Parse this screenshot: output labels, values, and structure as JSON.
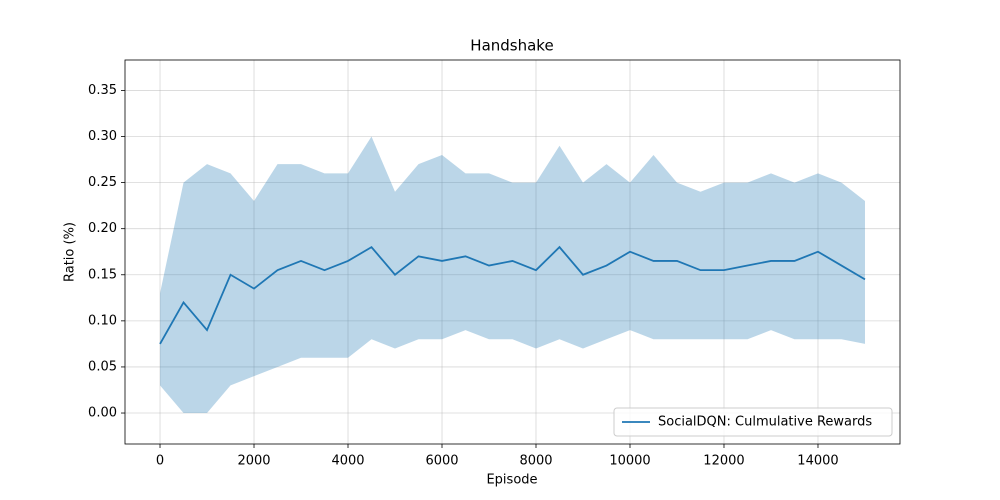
{
  "chart_data": {
    "type": "line",
    "title": "Handshake",
    "x_label": "Episode",
    "y_label": "Ratio (%)",
    "x": [
      0,
      500,
      1000,
      1500,
      2000,
      2500,
      3000,
      3500,
      4000,
      4500,
      5000,
      5500,
      6000,
      6500,
      7000,
      7500,
      8000,
      8500,
      9000,
      9500,
      10000,
      10500,
      11000,
      11500,
      12000,
      12500,
      13000,
      13500,
      14000,
      14500,
      15000
    ],
    "series": [
      {
        "name": "SocialDQN: Culmulative Rewards",
        "color": "#1f77b4",
        "band_color": "#1f77b4",
        "values": [
          0.075,
          0.12,
          0.09,
          0.15,
          0.135,
          0.155,
          0.165,
          0.155,
          0.165,
          0.18,
          0.15,
          0.17,
          0.165,
          0.17,
          0.16,
          0.165,
          0.155,
          0.18,
          0.15,
          0.16,
          0.175,
          0.165,
          0.165,
          0.155,
          0.155,
          0.16,
          0.165,
          0.165,
          0.175,
          0.16,
          0.145
        ],
        "lower": [
          0.03,
          0.0,
          0.0,
          0.03,
          0.04,
          0.05,
          0.06,
          0.06,
          0.06,
          0.08,
          0.07,
          0.08,
          0.08,
          0.09,
          0.08,
          0.08,
          0.07,
          0.08,
          0.07,
          0.08,
          0.09,
          0.08,
          0.08,
          0.08,
          0.08,
          0.08,
          0.09,
          0.08,
          0.08,
          0.08,
          0.075
        ],
        "upper": [
          0.13,
          0.25,
          0.27,
          0.26,
          0.23,
          0.27,
          0.27,
          0.26,
          0.26,
          0.3,
          0.24,
          0.27,
          0.28,
          0.26,
          0.26,
          0.25,
          0.25,
          0.29,
          0.25,
          0.27,
          0.25,
          0.28,
          0.25,
          0.24,
          0.25,
          0.25,
          0.26,
          0.25,
          0.26,
          0.25,
          0.23
        ]
      }
    ],
    "xlim": [
      -745,
      15745
    ],
    "xticks": [
      0,
      2000,
      4000,
      6000,
      8000,
      10000,
      12000,
      14000
    ],
    "ylim": [
      -0.0336,
      0.383
    ],
    "yticks": [
      {
        "value": 0,
        "label": "0.00"
      },
      {
        "value": 0.05,
        "label": "0.05"
      },
      {
        "value": 0.1,
        "label": "0.10"
      },
      {
        "value": 0.15,
        "label": "0.15"
      },
      {
        "value": 0.2,
        "label": "0.20"
      },
      {
        "value": 0.25,
        "label": "0.25"
      },
      {
        "value": 0.3,
        "label": "0.30"
      },
      {
        "value": 0.35,
        "label": "0.35"
      }
    ],
    "grid": true,
    "legend": "lower right"
  }
}
